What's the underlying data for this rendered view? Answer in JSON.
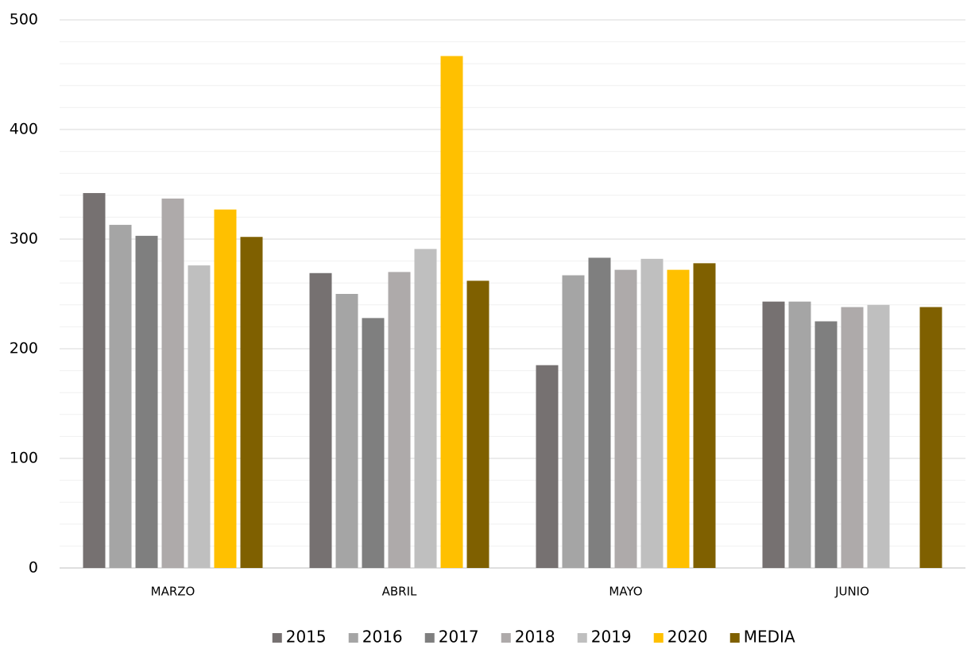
{
  "chart_data": {
    "type": "bar",
    "categories": [
      "MARZO",
      "ABRIL",
      "MAYO",
      "JUNIO"
    ],
    "series": [
      {
        "name": "2015",
        "color": "#767171",
        "values": [
          342,
          269,
          185,
          243
        ]
      },
      {
        "name": "2016",
        "color": "#a5a5a5",
        "values": [
          313,
          250,
          267,
          243
        ]
      },
      {
        "name": "2017",
        "color": "#7f7f7f",
        "values": [
          303,
          228,
          283,
          225
        ]
      },
      {
        "name": "2018",
        "color": "#aeaaaa",
        "values": [
          337,
          270,
          272,
          238
        ]
      },
      {
        "name": "2019",
        "color": "#bfbfbf",
        "values": [
          276,
          291,
          282,
          240
        ]
      },
      {
        "name": "2020",
        "color": "#ffc000",
        "values": [
          327,
          467,
          272,
          null
        ]
      },
      {
        "name": "MEDIA",
        "color": "#7f6000",
        "values": [
          302,
          262,
          278,
          238
        ]
      }
    ],
    "ylim": [
      0,
      500
    ],
    "yticks": [
      0,
      100,
      200,
      300,
      400,
      500
    ],
    "minor_yticks": [
      20,
      40,
      60,
      80,
      120,
      140,
      160,
      180,
      220,
      240,
      260,
      280,
      320,
      340,
      360,
      380,
      420,
      440,
      460,
      480
    ],
    "grid": true,
    "legend": "bottom"
  }
}
